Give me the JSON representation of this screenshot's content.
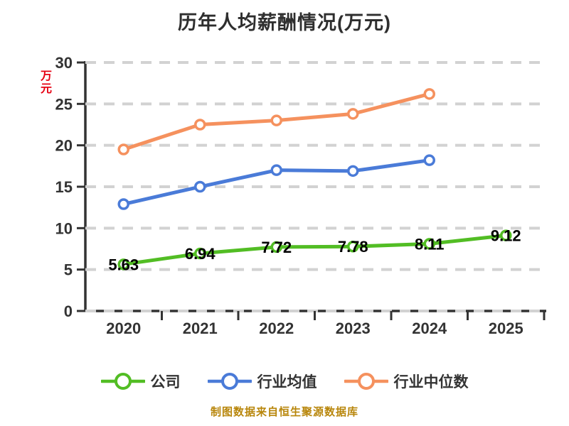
{
  "title": "历年人均薪酬情况(万元)",
  "y_unit_label": "万元",
  "footer": "制图数据来自恒生聚源数据库",
  "colors": {
    "company_green": "#52bd24",
    "industry_avg_blue": "#4a7bd8",
    "industry_median_orange": "#f5915e",
    "axis_text": "#333333",
    "gridline": "#d2d2d2",
    "unit_label_red": "#e60012",
    "footer_gold": "#b8860b",
    "data_label": "#000000",
    "marker_fill": "#ffffff"
  },
  "chart_data": {
    "type": "line",
    "title": "历年人均薪酬情况(万元)",
    "xlabel": "",
    "ylabel": "万元",
    "categories": [
      "2020",
      "2021",
      "2022",
      "2023",
      "2024",
      "2025"
    ],
    "ylim": [
      0,
      30
    ],
    "y_ticks": [
      0,
      5,
      10,
      15,
      20,
      25,
      30
    ],
    "y_tick_labels": [
      "0",
      "5",
      "10",
      "15",
      "20",
      "25",
      "30"
    ],
    "grid": true,
    "grid_style": "dashed",
    "legend_position": "bottom",
    "series": [
      {
        "name": "公司",
        "color": "#52bd24",
        "values": [
          5.63,
          6.94,
          7.72,
          7.78,
          8.11,
          9.12
        ],
        "labels": [
          "5.63",
          "6.94",
          "7.72",
          "7.78",
          "8.11",
          "9.12"
        ]
      },
      {
        "name": "行业均值",
        "color": "#4a7bd8",
        "values": [
          12.9,
          15.0,
          17.0,
          16.9,
          18.2,
          null
        ],
        "labels": null
      },
      {
        "name": "行业中位数",
        "color": "#f5915e",
        "values": [
          19.5,
          22.5,
          23.0,
          23.8,
          26.2,
          null
        ],
        "labels": null
      }
    ]
  }
}
